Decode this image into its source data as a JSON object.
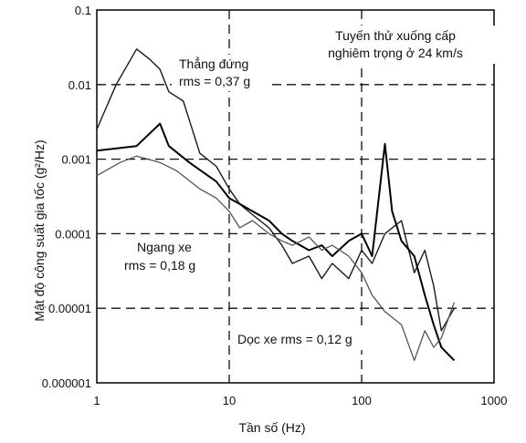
{
  "chart_data": {
    "type": "line",
    "xscale": "log",
    "yscale": "log",
    "xlim": [
      1,
      1000
    ],
    "ylim": [
      1e-06,
      0.1
    ],
    "xlabel": "Tần số (Hz)",
    "ylabel": "Mật độ công suất gia tốc (g²/Hz)",
    "xticks": [
      "1",
      "10",
      "100",
      "1000"
    ],
    "yticks": [
      "0.1",
      "0.01",
      "0.001",
      "0.0001",
      "0.00001",
      "0.000001"
    ],
    "grid": "dashed",
    "annotations": {
      "title_line1": "Tuyến thử xuống cấp",
      "title_line2": "nghiêm trọng ở 24 km/s",
      "vertical_name": "Thẳng đứng",
      "vertical_rms": "rms = 0,37 g",
      "lateral_name": "Ngang xe",
      "lateral_rms": "rms = 0,18 g",
      "longitudinal": "Dọc xe rms = 0,12 g"
    },
    "series": [
      {
        "x": [
          1,
          1.4,
          2,
          2.5,
          3,
          3.5,
          4.5,
          6,
          8,
          10,
          12,
          15,
          20,
          25,
          30,
          40,
          50,
          60,
          80,
          100,
          120,
          150,
          200,
          250,
          300,
          350,
          400,
          500
        ],
        "y": [
          0.0025,
          0.01,
          0.03,
          0.022,
          0.016,
          0.008,
          0.006,
          0.0012,
          0.0008,
          0.0004,
          0.00025,
          0.00018,
          0.00012,
          7e-05,
          4e-05,
          5e-05,
          2.5e-05,
          4e-05,
          2.5e-05,
          6e-05,
          4e-05,
          0.0001,
          0.00015,
          3e-05,
          6e-05,
          2e-05,
          5e-06,
          1e-05
        ]
      },
      {
        "x": [
          1,
          2,
          3,
          3.5,
          5,
          8,
          10,
          12,
          15,
          20,
          25,
          30,
          40,
          50,
          60,
          80,
          100,
          120,
          150,
          170,
          200,
          250,
          300,
          350,
          400,
          500
        ],
        "y": [
          0.0013,
          0.0015,
          0.003,
          0.0015,
          0.0009,
          0.0005,
          0.0003,
          0.00025,
          0.0002,
          0.00015,
          0.0001,
          8e-05,
          6e-05,
          7e-05,
          5e-05,
          8e-05,
          0.0001,
          5e-05,
          0.0016,
          0.0002,
          8e-05,
          5e-05,
          1.5e-05,
          6e-06,
          3e-06,
          2e-06
        ]
      },
      {
        "x": [
          1,
          1.5,
          2,
          3,
          4,
          6,
          8,
          10,
          12,
          15,
          20,
          25,
          30,
          40,
          50,
          60,
          80,
          100,
          120,
          150,
          200,
          250,
          300,
          350,
          400,
          500
        ],
        "y": [
          0.0006,
          0.0009,
          0.0011,
          0.0009,
          0.0007,
          0.0004,
          0.0003,
          0.0002,
          0.00012,
          0.00015,
          0.0001,
          8e-05,
          7e-05,
          9e-05,
          6e-05,
          7e-05,
          5e-05,
          3e-05,
          1.5e-05,
          9e-06,
          6e-06,
          2e-06,
          5e-06,
          3e-06,
          4e-06,
          1.2e-05
        ]
      }
    ]
  }
}
